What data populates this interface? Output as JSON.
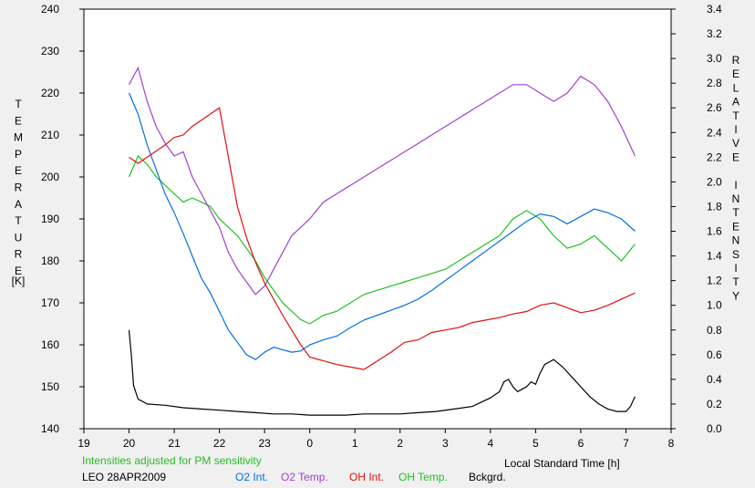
{
  "chart_data": {
    "type": "line",
    "title": "",
    "xlabel": "Local Standard Time [h]",
    "ylabel_left_letters": [
      "T",
      "E",
      "M",
      "P",
      "E",
      "R",
      "A",
      "T",
      "U",
      "R",
      "E"
    ],
    "ylabel_left_unit": "[K]",
    "ylabel_right_letters": [
      "R",
      "E",
      "L",
      "A",
      "T",
      "I",
      "V",
      "E",
      "",
      "I",
      "N",
      "T",
      "E",
      "N",
      "S",
      "I",
      "T",
      "Y"
    ],
    "x_ticks": [
      "19",
      "20",
      "21",
      "22",
      "23",
      "0",
      "1",
      "2",
      "3",
      "4",
      "5",
      "6",
      "7",
      "8"
    ],
    "x_range": [
      19,
      32
    ],
    "y_left_ticks": [
      140,
      150,
      160,
      170,
      180,
      190,
      200,
      210,
      220,
      230,
      240
    ],
    "y_left_range": [
      140,
      240
    ],
    "y_right_ticks": [
      "0.0",
      "0.2",
      "0.4",
      "0.6",
      "0.8",
      "1.0",
      "1.2",
      "1.4",
      "1.6",
      "1.8",
      "2.0",
      "2.2",
      "2.4",
      "2.6",
      "2.8",
      "3.0",
      "3.2",
      "3.4"
    ],
    "y_right_range": [
      0.0,
      3.4
    ],
    "grid": false,
    "note": "Intensities adjusted for PM sensitivity",
    "site_date": "LEO 28APR2009",
    "series": [
      {
        "name": "O2 Int.",
        "axis": "right",
        "color": "#0070e0",
        "x": [
          20.0,
          20.2,
          20.4,
          20.6,
          20.8,
          21.0,
          21.2,
          21.4,
          21.6,
          21.8,
          22.0,
          22.2,
          22.4,
          22.6,
          22.8,
          23.0,
          23.2,
          23.4,
          23.6,
          23.8,
          24.0,
          24.3,
          24.6,
          24.9,
          25.2,
          25.5,
          25.8,
          26.1,
          26.4,
          26.7,
          27.0,
          27.3,
          27.6,
          27.9,
          28.2,
          28.5,
          28.8,
          29.1,
          29.4,
          29.7,
          30.0,
          30.3,
          30.6,
          30.9,
          31.2
        ],
        "y": [
          2.72,
          2.55,
          2.3,
          2.1,
          1.9,
          1.75,
          1.58,
          1.4,
          1.22,
          1.1,
          0.95,
          0.8,
          0.7,
          0.6,
          0.56,
          0.62,
          0.66,
          0.64,
          0.62,
          0.63,
          0.68,
          0.72,
          0.75,
          0.82,
          0.88,
          0.92,
          0.96,
          1.0,
          1.05,
          1.12,
          1.2,
          1.28,
          1.36,
          1.44,
          1.52,
          1.6,
          1.68,
          1.74,
          1.72,
          1.66,
          1.72,
          1.78,
          1.75,
          1.7,
          1.6
        ]
      },
      {
        "name": "O2 Temp.",
        "axis": "left",
        "color": "#a040d0",
        "x": [
          20.0,
          20.2,
          20.4,
          20.6,
          20.8,
          21.0,
          21.2,
          21.4,
          21.6,
          21.8,
          22.0,
          22.2,
          22.4,
          22.6,
          22.8,
          23.0,
          23.2,
          23.4,
          23.6,
          23.8,
          24.0,
          24.3,
          24.6,
          24.9,
          25.2,
          25.5,
          25.8,
          26.1,
          26.4,
          26.7,
          27.0,
          27.3,
          27.6,
          27.9,
          28.2,
          28.5,
          28.8,
          29.1,
          29.4,
          29.7,
          30.0,
          30.3,
          30.6,
          30.9,
          31.2
        ],
        "y": [
          222,
          226,
          218,
          212,
          208,
          205,
          206,
          200,
          196,
          192,
          188,
          182,
          178,
          175,
          172,
          174,
          178,
          182,
          186,
          188,
          190,
          194,
          196,
          198,
          200,
          202,
          204,
          206,
          208,
          210,
          212,
          214,
          216,
          218,
          220,
          222,
          222,
          220,
          218,
          220,
          224,
          222,
          218,
          212,
          205
        ]
      },
      {
        "name": "OH Int.",
        "axis": "right",
        "color": "#e01010",
        "x": [
          20.0,
          20.2,
          20.4,
          20.6,
          20.8,
          21.0,
          21.2,
          21.4,
          21.6,
          21.8,
          22.0,
          22.2,
          22.4,
          22.6,
          22.8,
          23.0,
          23.2,
          23.4,
          23.6,
          23.8,
          24.0,
          24.3,
          24.6,
          24.9,
          25.2,
          25.5,
          25.8,
          26.1,
          26.4,
          26.7,
          27.0,
          27.3,
          27.6,
          27.9,
          28.2,
          28.5,
          28.8,
          29.1,
          29.4,
          29.7,
          30.0,
          30.3,
          30.6,
          30.9,
          31.2
        ],
        "y": [
          2.2,
          2.15,
          2.2,
          2.25,
          2.3,
          2.36,
          2.38,
          2.45,
          2.5,
          2.55,
          2.6,
          2.2,
          1.8,
          1.55,
          1.35,
          1.18,
          1.05,
          0.92,
          0.8,
          0.68,
          0.58,
          0.55,
          0.52,
          0.5,
          0.48,
          0.55,
          0.62,
          0.7,
          0.72,
          0.78,
          0.8,
          0.82,
          0.86,
          0.88,
          0.9,
          0.93,
          0.95,
          1.0,
          1.02,
          0.98,
          0.94,
          0.96,
          1.0,
          1.05,
          1.1
        ]
      },
      {
        "name": "OH Temp.",
        "axis": "left",
        "color": "#20c020",
        "x": [
          20.0,
          20.2,
          20.4,
          20.6,
          20.8,
          21.0,
          21.2,
          21.4,
          21.6,
          21.8,
          22.0,
          22.2,
          22.4,
          22.6,
          22.8,
          23.0,
          23.2,
          23.4,
          23.6,
          23.8,
          24.0,
          24.3,
          24.6,
          24.9,
          25.2,
          25.5,
          25.8,
          26.1,
          26.4,
          26.7,
          27.0,
          27.3,
          27.6,
          27.9,
          28.2,
          28.5,
          28.8,
          29.1,
          29.4,
          29.7,
          30.0,
          30.3,
          30.6,
          30.9,
          31.2
        ],
        "y": [
          200,
          205,
          203,
          200,
          198,
          196,
          194,
          195,
          194,
          193,
          190,
          188,
          186,
          183,
          180,
          176,
          173,
          170,
          168,
          166,
          165,
          167,
          168,
          170,
          172,
          173,
          174,
          175,
          176,
          177,
          178,
          180,
          182,
          184,
          186,
          190,
          192,
          190,
          186,
          183,
          184,
          186,
          183,
          180,
          184
        ]
      },
      {
        "name": "Bckgrd.",
        "axis": "right",
        "color": "#000000",
        "x": [
          20.0,
          20.05,
          20.1,
          20.2,
          20.4,
          20.8,
          21.2,
          21.6,
          22.0,
          22.4,
          22.8,
          23.2,
          23.6,
          24.0,
          24.4,
          24.8,
          25.2,
          25.6,
          26.0,
          26.4,
          26.8,
          27.2,
          27.6,
          28.0,
          28.2,
          28.3,
          28.4,
          28.5,
          28.6,
          28.7,
          28.8,
          28.9,
          29.0,
          29.1,
          29.2,
          29.4,
          29.6,
          29.8,
          30.0,
          30.2,
          30.4,
          30.6,
          30.8,
          31.0,
          31.1,
          31.2
        ],
        "y": [
          0.8,
          0.6,
          0.35,
          0.24,
          0.2,
          0.19,
          0.17,
          0.16,
          0.15,
          0.14,
          0.13,
          0.12,
          0.12,
          0.11,
          0.11,
          0.11,
          0.12,
          0.12,
          0.12,
          0.13,
          0.14,
          0.16,
          0.18,
          0.25,
          0.3,
          0.38,
          0.4,
          0.34,
          0.3,
          0.32,
          0.34,
          0.38,
          0.36,
          0.45,
          0.52,
          0.56,
          0.5,
          0.42,
          0.34,
          0.26,
          0.2,
          0.16,
          0.14,
          0.14,
          0.18,
          0.26
        ]
      }
    ]
  },
  "legend": {
    "note": "Intensities adjusted for PM sensitivity",
    "site_date": "LEO 28APR2009",
    "items": [
      "O2 Int.",
      "O2 Temp.",
      "OH Int.",
      "OH Temp.",
      "Bckgrd."
    ],
    "colors": [
      "#0070e0",
      "#a040d0",
      "#e01010",
      "#20c020",
      "#000000"
    ]
  },
  "xlabel": "Local Standard Time [h]",
  "left_unit": "[K]"
}
